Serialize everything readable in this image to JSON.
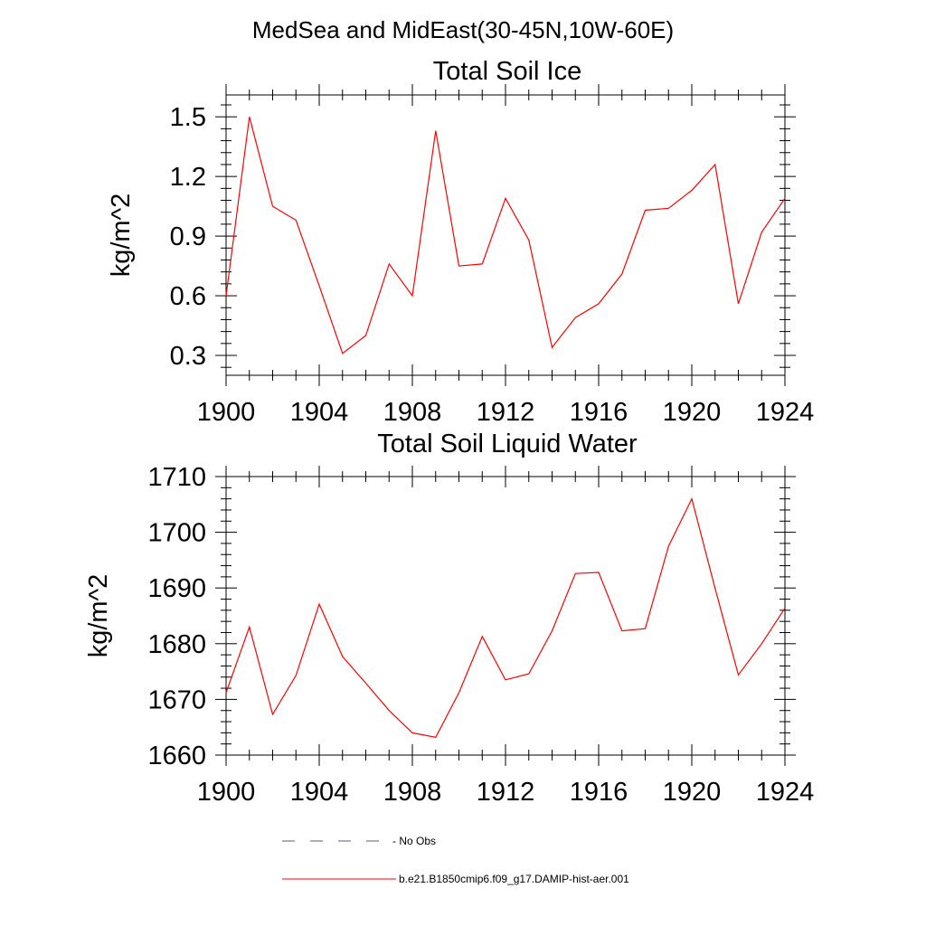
{
  "figure": {
    "title": "MedSea and MidEast(30-45N,10W-60E)"
  },
  "chart_data": [
    {
      "type": "line",
      "title": "Total Soil Ice",
      "xlabel": "",
      "ylabel": "kg/m^2",
      "xlim": [
        1900,
        1924
      ],
      "ylim": [
        0.2,
        1.61
      ],
      "x_ticks": [
        "1900",
        "1904",
        "1908",
        "1912",
        "1916",
        "1920",
        "1924"
      ],
      "y_ticks": [
        "0.3",
        "0.6",
        "0.9",
        "1.2",
        "1.5"
      ],
      "grid": false,
      "series": [
        {
          "name": "b.e21.B1850cmip6.f09_g17.DAMIP-hist-aer.001",
          "color": "#ff0000",
          "x": [
            1900,
            1901,
            1902,
            1903,
            1904,
            1905,
            1906,
            1907,
            1908,
            1909,
            1910,
            1911,
            1912,
            1913,
            1914,
            1915,
            1916,
            1917,
            1918,
            1919,
            1920,
            1921,
            1922,
            1923,
            1924
          ],
          "values": [
            0.6,
            1.5,
            1.05,
            0.98,
            0.65,
            0.31,
            0.4,
            0.76,
            0.6,
            1.43,
            0.75,
            0.76,
            1.09,
            0.88,
            0.34,
            0.49,
            0.56,
            0.71,
            1.03,
            1.04,
            1.13,
            1.26,
            0.56,
            0.92,
            1.09
          ]
        }
      ]
    },
    {
      "type": "line",
      "title": "Total Soil Liquid Water",
      "xlabel": "",
      "ylabel": "kg/m^2",
      "xlim": [
        1900,
        1924
      ],
      "ylim": [
        1660,
        1710
      ],
      "x_ticks": [
        "1900",
        "1904",
        "1908",
        "1912",
        "1916",
        "1920",
        "1924"
      ],
      "y_ticks": [
        "1660",
        "1670",
        "1680",
        "1690",
        "1700",
        "1710"
      ],
      "grid": false,
      "series": [
        {
          "name": "b.e21.B1850cmip6.f09_g17.DAMIP-hist-aer.001",
          "color": "#ff0000",
          "x": [
            1900,
            1901,
            1902,
            1903,
            1904,
            1905,
            1906,
            1907,
            1908,
            1909,
            1910,
            1911,
            1912,
            1913,
            1914,
            1915,
            1916,
            1917,
            1918,
            1919,
            1920,
            1921,
            1922,
            1923,
            1924
          ],
          "values": [
            1671.2,
            1683.0,
            1667.3,
            1674.3,
            1687.1,
            1677.7,
            1672.9,
            1668.0,
            1664.0,
            1663.2,
            1671.2,
            1681.3,
            1673.5,
            1674.6,
            1682.3,
            1692.6,
            1692.8,
            1682.3,
            1682.7,
            1697.5,
            1706.0,
            1689.9,
            1674.4,
            1680.0,
            1686.4
          ]
        }
      ]
    }
  ],
  "legend": {
    "entries": [
      {
        "label": "- No Obs",
        "style": "dashed",
        "color": "#5a5a8a"
      },
      {
        "label": "b.e21.B1850cmip6.f09_g17.DAMIP-hist-aer.001",
        "style": "solid",
        "color": "#ff0000"
      }
    ]
  }
}
